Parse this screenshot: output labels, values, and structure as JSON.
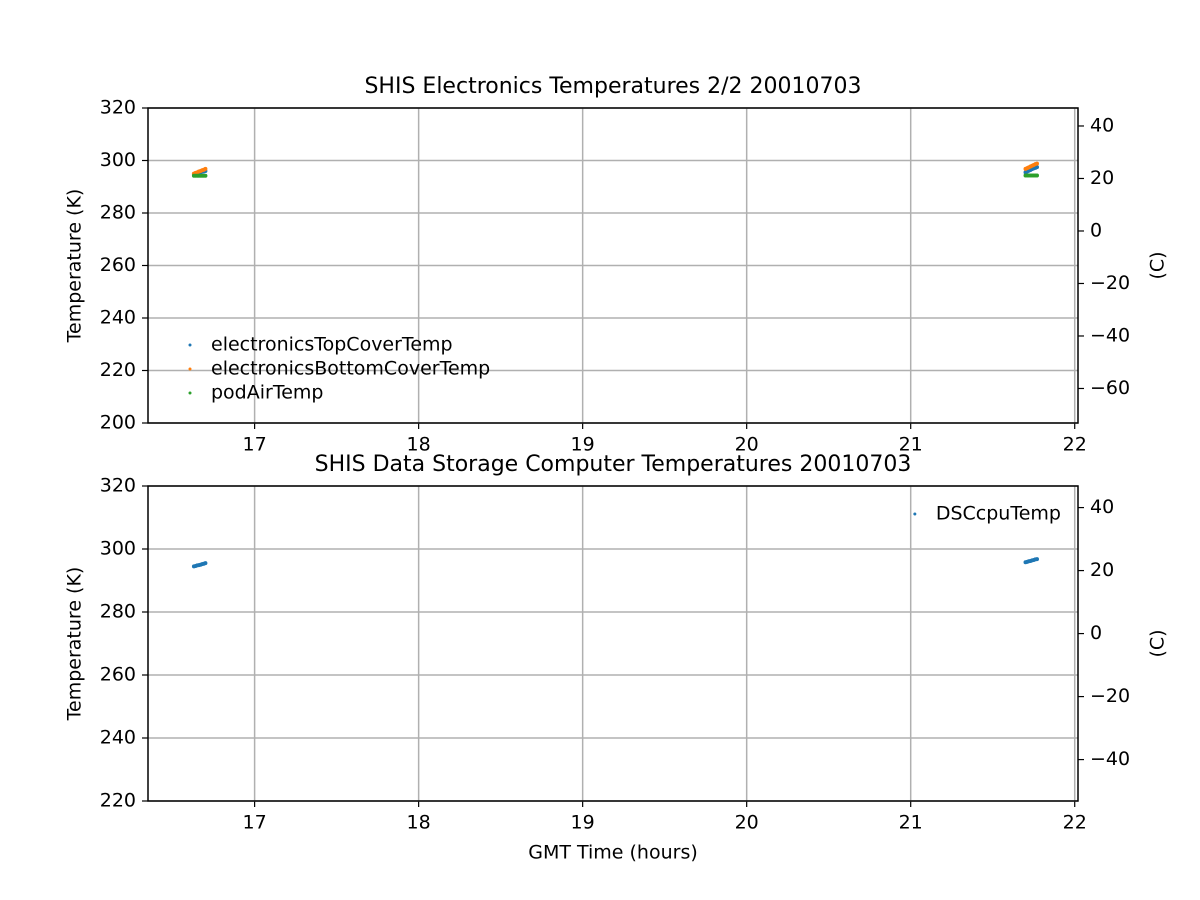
{
  "chart_data": [
    {
      "type": "scatter",
      "title": "SHIS Electronics Temperatures 2/2 20010703",
      "y_label": "Temperature (K)",
      "y2_label": "(C)",
      "x": [
        16.63,
        16.64,
        16.65,
        16.66,
        16.67,
        16.68,
        16.69,
        16.7,
        21.7,
        21.71,
        21.72,
        21.73,
        21.74,
        21.75,
        21.76,
        21.77
      ],
      "series": [
        {
          "name": "electronicsTopCoverTemp",
          "color": "#1f77b4",
          "values": [
            294.8,
            295.0,
            295.2,
            295.3,
            295.5,
            295.7,
            295.8,
            296.0,
            295.5,
            295.8,
            296.1,
            296.4,
            296.7,
            297.0,
            297.2,
            297.5
          ]
        },
        {
          "name": "electronicsBottomCoverTemp",
          "color": "#ff7f0e",
          "values": [
            295.0,
            295.3,
            295.5,
            295.8,
            296.0,
            296.3,
            296.5,
            296.8,
            296.8,
            297.1,
            297.4,
            297.7,
            298.0,
            298.3,
            298.6,
            298.8
          ]
        },
        {
          "name": "podAirTemp",
          "color": "#2ca02c",
          "values": [
            294.2,
            294.2,
            294.2,
            294.2,
            294.2,
            294.2,
            294.2,
            294.2,
            294.3,
            294.3,
            294.3,
            294.3,
            294.3,
            294.3,
            294.3,
            294.3
          ]
        }
      ],
      "xlim": [
        16.35,
        22.02
      ],
      "xticks": [
        17,
        18,
        19,
        20,
        21,
        22
      ],
      "ylim": [
        200,
        320
      ],
      "yticks": [
        200,
        220,
        240,
        260,
        280,
        300,
        320
      ],
      "y2lim": [
        -73.15,
        46.85
      ],
      "y2ticks": [
        {
          "value": -60,
          "label": "−60"
        },
        {
          "value": -40,
          "label": "−40"
        },
        {
          "value": -20,
          "label": "−20"
        },
        0,
        20,
        40
      ],
      "grid": true,
      "legend": "lower left"
    },
    {
      "type": "scatter",
      "title": "SHIS Data Storage Computer Temperatures 20010703",
      "x_label": "GMT Time (hours)",
      "y_label": "Temperature (K)",
      "y2_label": "(C)",
      "x": [
        16.63,
        16.64,
        16.65,
        16.66,
        16.67,
        16.68,
        16.69,
        16.7,
        21.7,
        21.71,
        21.72,
        21.73,
        21.74,
        21.75,
        21.76,
        21.77
      ],
      "series": [
        {
          "name": "DSCcpuTemp",
          "color": "#1f77b4",
          "values": [
            294.5,
            294.6,
            294.8,
            294.9,
            295.0,
            295.2,
            295.3,
            295.5,
            295.8,
            295.9,
            296.1,
            296.2,
            296.4,
            296.5,
            296.7,
            296.8
          ]
        }
      ],
      "xlim": [
        16.35,
        22.02
      ],
      "xticks": [
        17,
        18,
        19,
        20,
        21,
        22
      ],
      "ylim": [
        220,
        320
      ],
      "yticks": [
        220,
        240,
        260,
        280,
        300,
        320
      ],
      "y2lim": [
        -53.15,
        46.85
      ],
      "y2ticks": [
        {
          "value": -40,
          "label": "−40"
        },
        {
          "value": -20,
          "label": "−20"
        },
        0,
        20,
        40
      ],
      "grid": true,
      "legend": "upper right"
    }
  ]
}
